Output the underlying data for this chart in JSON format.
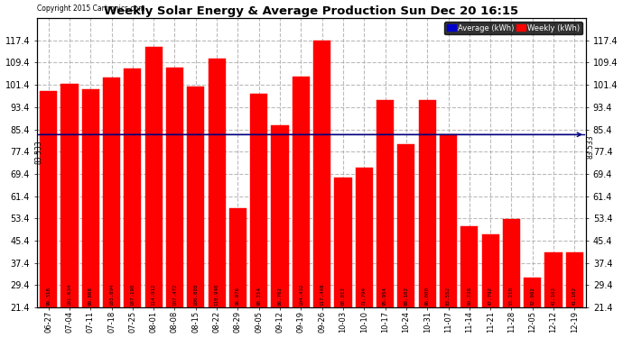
{
  "title": "Weekly Solar Energy & Average Production Sun Dec 20 16:15",
  "copyright": "Copyright 2015 Cartronics.com",
  "average_value": 83.533,
  "categories": [
    "06-27",
    "07-04",
    "07-11",
    "07-18",
    "07-25",
    "08-01",
    "08-08",
    "08-15",
    "08-22",
    "08-29",
    "09-05",
    "09-12",
    "09-19",
    "09-26",
    "10-03",
    "10-10",
    "10-17",
    "10-24",
    "10-31",
    "11-07",
    "11-14",
    "11-21",
    "11-28",
    "12-05",
    "12-12",
    "12-19"
  ],
  "values": [
    99.318,
    101.634,
    99.868,
    103.894,
    107.19,
    114.912,
    107.472,
    100.808,
    110.94,
    56.976,
    98.214,
    86.762,
    104.432,
    117.448,
    68.012,
    71.794,
    95.954,
    80.102,
    96.0,
    83.552,
    50.728,
    47.792,
    53.21,
    32.062,
    41.102,
    41.102
  ],
  "bar_color": "#ff0000",
  "avg_line_color": "#000080",
  "background_color": "#ffffff",
  "plot_bg_color": "#ffffff",
  "grid_color": "#aaaaaa",
  "ylim_min": 21.4,
  "ylim_max": 125.4,
  "yticks": [
    21.4,
    29.4,
    37.4,
    45.4,
    53.4,
    61.4,
    69.4,
    77.4,
    85.4,
    93.4,
    101.4,
    109.4,
    117.4
  ],
  "legend_avg_color": "#0000cc",
  "legend_weekly_color": "#ff0000",
  "legend_avg_text": "Average (kWh)",
  "legend_weekly_text": "Weekly (kWh)"
}
